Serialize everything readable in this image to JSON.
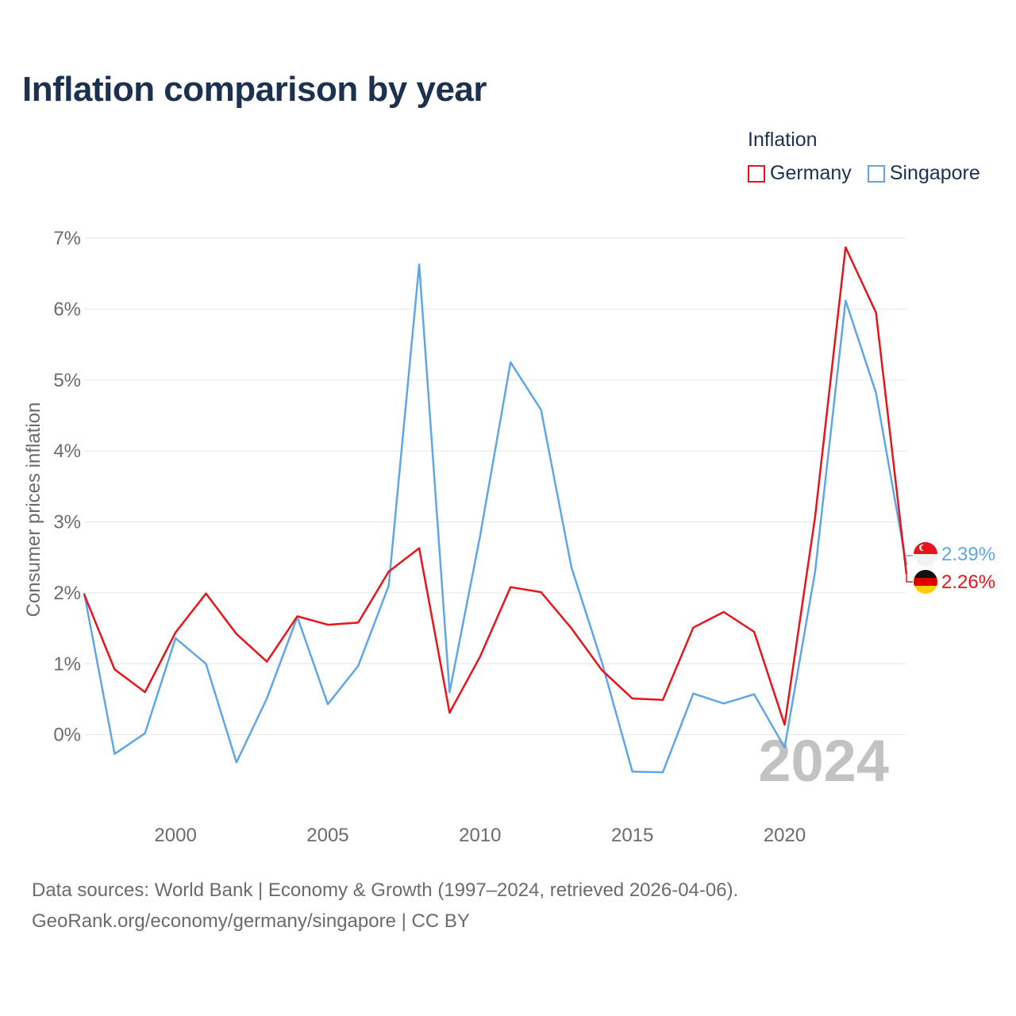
{
  "title": "Inflation comparison by year",
  "legend": {
    "title": "Inflation",
    "items": [
      {
        "label": "Germany",
        "color": "#e8141b"
      },
      {
        "label": "Singapore",
        "color": "#5fa6e6"
      }
    ]
  },
  "footer": {
    "line1": "Data sources: World Bank | Economy & Growth (1997–2024, retrieved 2026-04-06).",
    "line2": "GeoRank.org/economy/germany/singapore | CC BY"
  },
  "year_watermark": "2024",
  "end_labels": {
    "singapore": "2.39%",
    "germany": "2.26%"
  },
  "chart_data": {
    "type": "line",
    "title": "Inflation comparison by year",
    "xlabel": "",
    "ylabel": "Consumer prices inflation",
    "x": [
      1997,
      1998,
      1999,
      2000,
      2001,
      2002,
      2003,
      2004,
      2005,
      2006,
      2007,
      2008,
      2009,
      2010,
      2011,
      2012,
      2013,
      2014,
      2015,
      2016,
      2017,
      2018,
      2019,
      2020,
      2021,
      2022,
      2023,
      2024
    ],
    "xticks": [
      2000,
      2005,
      2010,
      2015,
      2020
    ],
    "xtick_labels": [
      "2000",
      "2005",
      "2010",
      "2015",
      "2020"
    ],
    "ylim": [
      -1,
      7
    ],
    "yticks": [
      0,
      1,
      2,
      3,
      4,
      5,
      6,
      7
    ],
    "ytick_labels": [
      "0%",
      "1%",
      "2%",
      "3%",
      "4%",
      "5%",
      "6%",
      "7%"
    ],
    "grid": true,
    "series": [
      {
        "name": "Germany",
        "color": "#e8141b",
        "values": [
          1.98,
          0.92,
          0.6,
          1.44,
          1.99,
          1.42,
          1.03,
          1.67,
          1.55,
          1.58,
          2.3,
          2.63,
          0.31,
          1.1,
          2.08,
          2.01,
          1.5,
          0.91,
          0.51,
          0.49,
          1.51,
          1.73,
          1.45,
          0.14,
          3.07,
          6.87,
          5.95,
          2.26
        ]
      },
      {
        "name": "Singapore",
        "color": "#5fa6e6",
        "values": [
          2.0,
          -0.27,
          0.02,
          1.36,
          1.0,
          -0.39,
          0.51,
          1.66,
          0.43,
          0.97,
          2.1,
          6.63,
          0.6,
          2.8,
          5.25,
          4.58,
          2.36,
          1.02,
          -0.52,
          -0.53,
          0.58,
          0.44,
          0.57,
          -0.18,
          2.3,
          6.12,
          4.82,
          2.39
        ]
      }
    ]
  }
}
